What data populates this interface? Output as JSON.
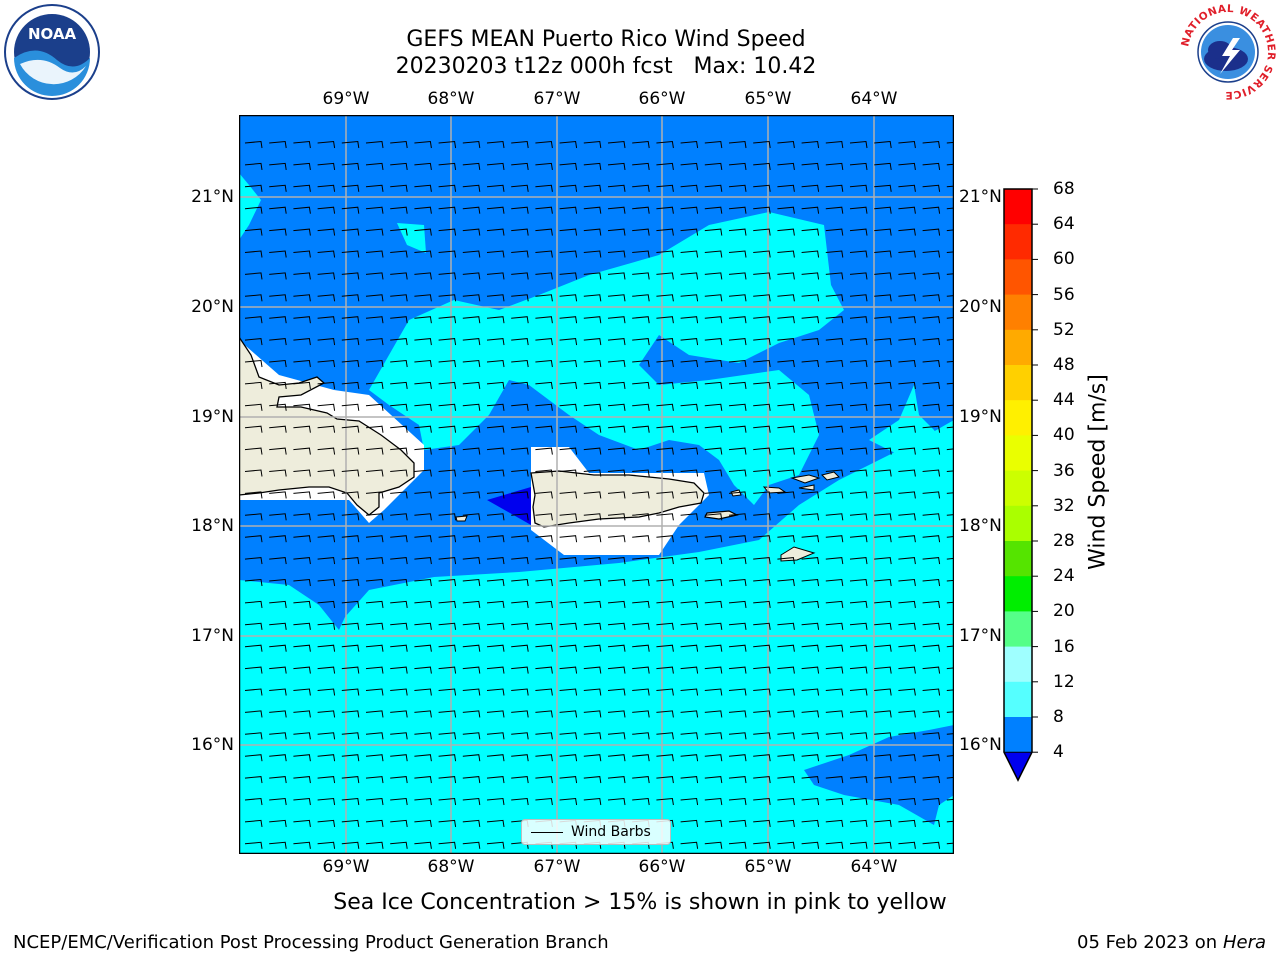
{
  "title_line1": "GEFS MEAN Puerto Rico Wind Speed",
  "title_line2": "20230203 t12z 000h fcst   Max: 10.42",
  "lon_labels": [
    "69°W",
    "68°W",
    "67°W",
    "66°W",
    "65°W",
    "64°W"
  ],
  "lat_labels": [
    "21°N",
    "20°N",
    "19°N",
    "18°N",
    "17°N",
    "16°N"
  ],
  "colorbar": {
    "label": "Wind Speed [m/s]",
    "ticks": [
      "68",
      "64",
      "60",
      "56",
      "52",
      "48",
      "44",
      "40",
      "36",
      "32",
      "28",
      "24",
      "20",
      "16",
      "12",
      "8",
      "4"
    ],
    "colors": [
      "#ff0000",
      "#ff2a00",
      "#ff5500",
      "#ff8000",
      "#ffaa00",
      "#ffd000",
      "#fff000",
      "#eaff00",
      "#ccff00",
      "#aaff00",
      "#55e400",
      "#00ee00",
      "#55ff88",
      "#9fffff",
      "#55ffff",
      "#00ffff",
      "#0080ff"
    ],
    "extend_color": "#0000ee"
  },
  "legend_label": "Wind Barbs",
  "subtitle": "Sea Ice Concentration > 15% is shown in pink to yellow",
  "footer_left": "NCEP/EMC/Verification Post Processing Product Generation Branch",
  "footer_date": "05 Feb 2023 on",
  "footer_host": "Hera",
  "colors": {
    "low_wind": "#0080ff",
    "mid_wind": "#00ffff",
    "very_low": "#0000ee",
    "land": "#eeeddc",
    "grid": "#b0b0b0"
  },
  "icons": [
    "noaa-logo-icon",
    "nws-logo-icon"
  ],
  "logo_text": {
    "noaa": "NOAA",
    "nws_ring": "NATIONAL WEATHER SERVICE"
  }
}
